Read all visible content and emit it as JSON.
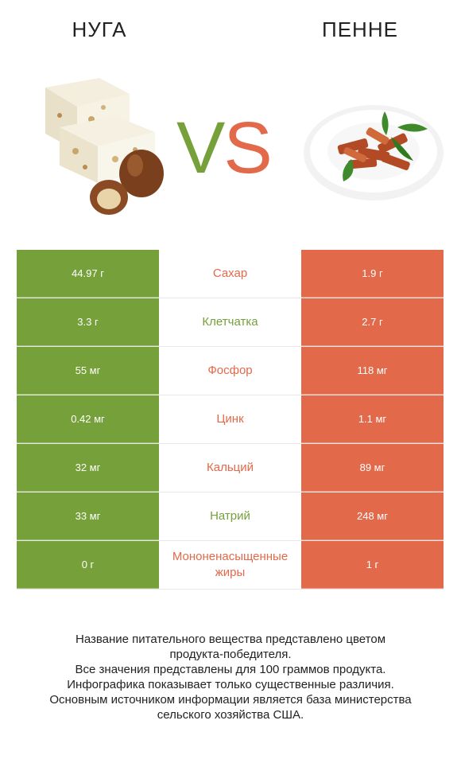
{
  "header": {
    "left_title": "НУГА",
    "right_title": "ПЕННЕ",
    "vs_v": "V",
    "vs_s": "S"
  },
  "colors": {
    "left": "#76a03a",
    "right": "#e2694a"
  },
  "rows": [
    {
      "left": "44.97 г",
      "name": "Сахар",
      "right": "1.9 г",
      "winner": "right"
    },
    {
      "left": "3.3 г",
      "name": "Клетчатка",
      "right": "2.7 г",
      "winner": "left"
    },
    {
      "left": "55 мг",
      "name": "Фосфор",
      "right": "118 мг",
      "winner": "right"
    },
    {
      "left": "0.42 мг",
      "name": "Цинк",
      "right": "1.1 мг",
      "winner": "right"
    },
    {
      "left": "32 мг",
      "name": "Кальций",
      "right": "89 мг",
      "winner": "right"
    },
    {
      "left": "33 мг",
      "name": "Натрий",
      "right": "248 мг",
      "winner": "left"
    },
    {
      "left": "0 г",
      "name": "Мононенасыщенные жиры",
      "right": "1 г",
      "winner": "right"
    }
  ],
  "footer": {
    "line1": "Название питательного вещества представлено цветом",
    "line2": "продукта-победителя.",
    "line3": "Все значения представлены для 100 граммов продукта.",
    "line4": "Инфографика показывает только существенные различия.",
    "line5": "Основным источником информации является база министерства",
    "line6": "сельского хозяйства США."
  }
}
